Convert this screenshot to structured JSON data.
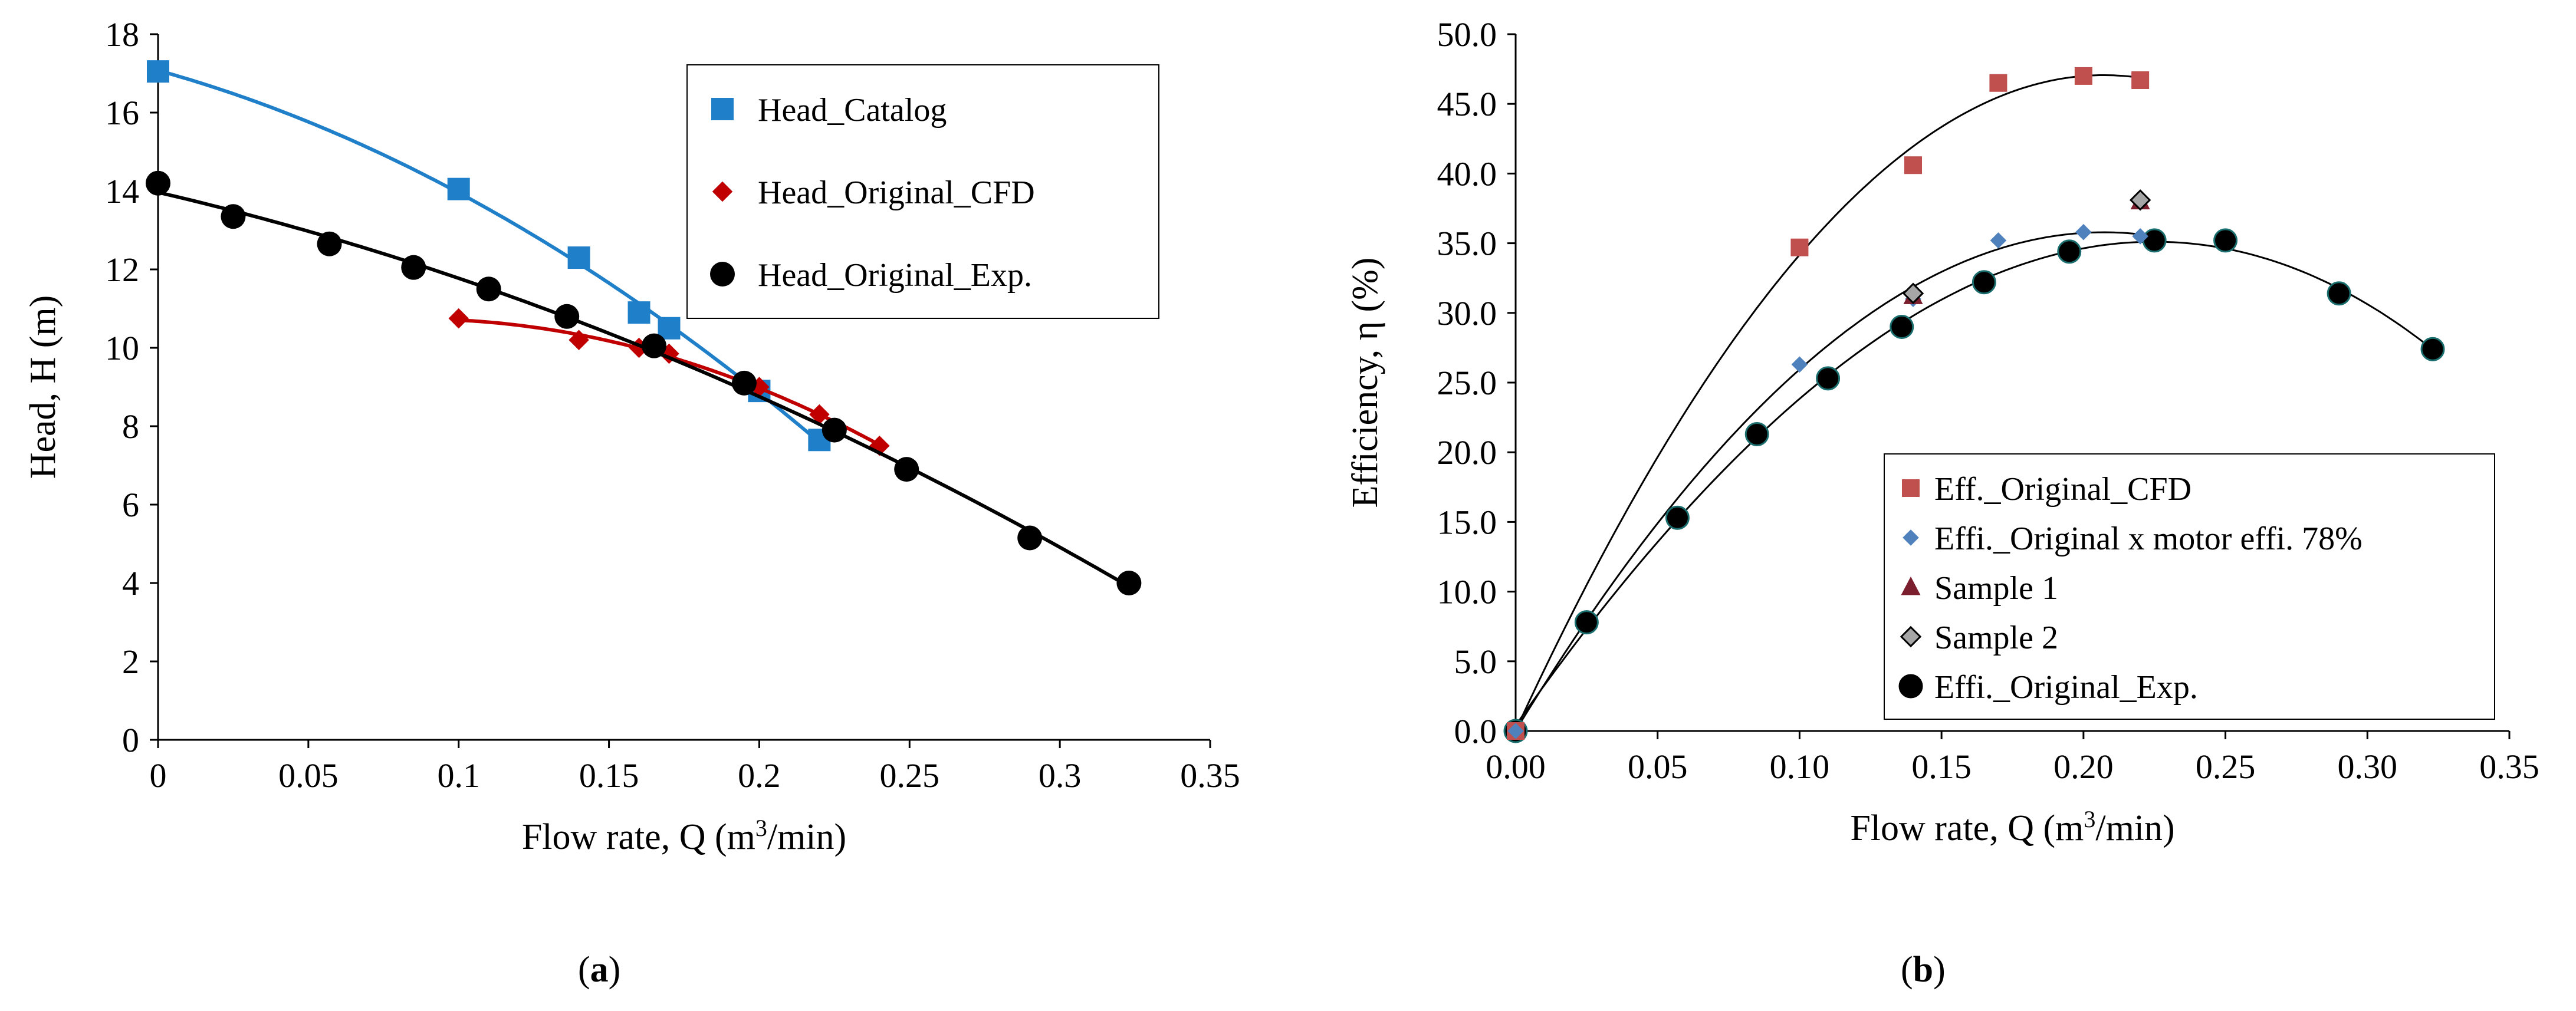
{
  "panels": [
    {
      "label_pre": "(",
      "label_letter": "a",
      "label_post": ")"
    },
    {
      "label_pre": "(",
      "label_letter": "b",
      "label_post": ")"
    }
  ],
  "chart_data": [
    {
      "id": "a",
      "type": "line",
      "xlabel": "Flow rate, Q (m3/min)",
      "ylabel": "Head, H (m)",
      "xlim": [
        0,
        0.35
      ],
      "ylim": [
        0,
        18
      ],
      "xticks": [
        0,
        0.05,
        0.1,
        0.15,
        0.2,
        0.25,
        0.3,
        0.35
      ],
      "xtick_labels": [
        "0",
        "0.05",
        "0.1",
        "0.15",
        "0.2",
        "0.25",
        "0.3",
        "0.35"
      ],
      "yticks": [
        0,
        2,
        4,
        6,
        8,
        10,
        12,
        14,
        16,
        18
      ],
      "ytick_labels": [
        "0",
        "2",
        "4",
        "6",
        "8",
        "10",
        "12",
        "14",
        "16",
        "18"
      ],
      "grid": false,
      "legend_position": "top-right",
      "series": [
        {
          "name": "Head_Catalog",
          "marker": "square",
          "color": "#1f7fc8",
          "x": [
            0.0,
            0.1,
            0.14,
            0.16,
            0.17,
            0.2,
            0.22
          ],
          "y": [
            17.05,
            14.05,
            12.3,
            10.9,
            10.5,
            8.9,
            7.65
          ]
        },
        {
          "name": "Head_Original_CFD",
          "marker": "diamond",
          "color": "#c00000",
          "x": [
            0.1,
            0.14,
            0.16,
            0.17,
            0.2,
            0.22,
            0.24
          ],
          "y": [
            10.75,
            10.2,
            10.0,
            9.85,
            9.0,
            8.3,
            7.5
          ]
        },
        {
          "name": "Head_Original_Exp.",
          "marker": "circle",
          "color": "#000000",
          "x": [
            0.0,
            0.025,
            0.057,
            0.085,
            0.11,
            0.136,
            0.165,
            0.195,
            0.225,
            0.249,
            0.29,
            0.323
          ],
          "y": [
            14.2,
            13.35,
            12.65,
            12.05,
            11.5,
            10.8,
            10.05,
            9.1,
            7.9,
            6.9,
            5.15,
            4.0
          ]
        }
      ]
    },
    {
      "id": "b",
      "type": "scatter",
      "xlabel": "Flow rate, Q (m3/min)",
      "ylabel": "Efficiency, η (%)",
      "xlim": [
        0,
        0.35
      ],
      "ylim": [
        0,
        50
      ],
      "xticks": [
        0,
        0.05,
        0.1,
        0.15,
        0.2,
        0.25,
        0.3,
        0.35
      ],
      "xtick_labels": [
        "0.00",
        "0.05",
        "0.10",
        "0.15",
        "0.20",
        "0.25",
        "0.30",
        "0.35"
      ],
      "yticks": [
        0,
        5,
        10,
        15,
        20,
        25,
        30,
        35,
        40,
        45,
        50
      ],
      "ytick_labels": [
        "0.0",
        "5.0",
        "10.0",
        "15.0",
        "20.0",
        "25.0",
        "30.0",
        "35.0",
        "40.0",
        "45.0",
        "50.0"
      ],
      "grid": false,
      "legend_position": "bottom-right",
      "series": [
        {
          "name": "Eff._Original_CFD",
          "marker": "square",
          "color": "#c0504d",
          "x": [
            0.0,
            0.1,
            0.14,
            0.17,
            0.2,
            0.22
          ],
          "y": [
            0.0,
            34.7,
            40.6,
            46.5,
            47.0,
            46.7
          ]
        },
        {
          "name": "Effi._Original x motor effi. 78%",
          "marker": "diamond",
          "color": "#4f81bd",
          "x": [
            0.0,
            0.1,
            0.14,
            0.17,
            0.2,
            0.22
          ],
          "y": [
            0.0,
            26.3,
            31.0,
            35.2,
            35.8,
            35.5
          ]
        },
        {
          "name": "Sample 1",
          "marker": "triangle",
          "color": "#7b1f2e",
          "x": [
            0.14,
            0.22
          ],
          "y": [
            31.2,
            38.0
          ]
        },
        {
          "name": "Sample 2",
          "marker": "diamond",
          "color": "#a6a6a6",
          "x": [
            0.14,
            0.22
          ],
          "y": [
            31.4,
            38.1
          ]
        },
        {
          "name": "Effi._Original_Exp.",
          "marker": "circle",
          "color": "#000000",
          "x": [
            0.0,
            0.025,
            0.057,
            0.085,
            0.11,
            0.136,
            0.165,
            0.195,
            0.225,
            0.25,
            0.29,
            0.323
          ],
          "y": [
            0.0,
            7.8,
            15.3,
            21.3,
            25.3,
            29.0,
            32.2,
            34.4,
            35.2,
            35.2,
            31.4,
            27.4
          ]
        }
      ]
    }
  ]
}
